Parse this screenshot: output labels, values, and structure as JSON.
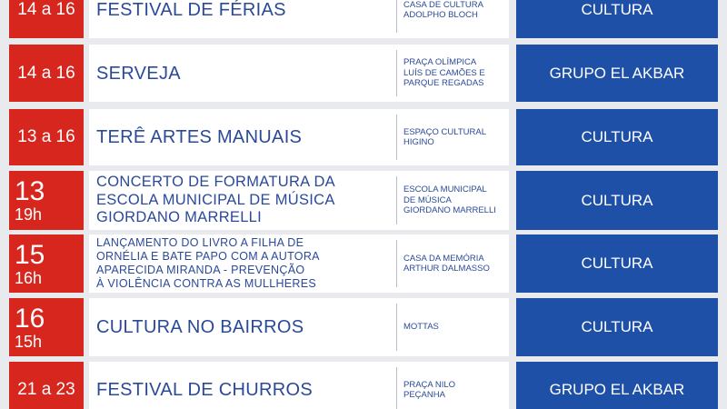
{
  "rows": [
    {
      "date": "14 a 16",
      "event": [
        "FESTIVAL DE FÉRIAS"
      ],
      "location": [
        "CASA DE CULTURA",
        "ADOLPHO BLOCH"
      ],
      "organizer": "CULTURA"
    },
    {
      "date": "14 a 16",
      "event": [
        "SERVEJA"
      ],
      "location": [
        "PRAÇA OLÍMPICA",
        "LUÍS DE CAMÕES E",
        "PARQUE REGADAS"
      ],
      "organizer": "GRUPO EL AKBAR"
    },
    {
      "date": "13 a 16",
      "event": [
        "TERÊ ARTES MANUAIS"
      ],
      "location": [
        "ESPAÇO CULTURAL",
        "HIGINO"
      ],
      "organizer": "CULTURA"
    },
    {
      "date": "13",
      "time": "19h",
      "event": [
        "CONCERTO DE FORMATURA DA",
        "ESCOLA MUNICIPAL DE MÚSICA",
        "GIORDANO MARRELLI"
      ],
      "location": [
        "ESCOLA MUNICIPAL",
        "DE MÚSICA",
        "GIORDANO MARRELLI"
      ],
      "organizer": "CULTURA"
    },
    {
      "date": "15",
      "time": "16h",
      "event": [
        "LANÇAMENTO DO LIVRO A FILHA DE",
        "ORNÉLIA E BATE PAPO COM A AUTORA",
        "APARECIDA MIRANDA - PREVENÇÃO",
        "À VIOLÊNCIA CONTRA AS MULLHERES"
      ],
      "location": [
        "CASA DA MEMÓRIA",
        "ARTHUR DALMASSO"
      ],
      "organizer": "CULTURA"
    },
    {
      "date": "16",
      "time": "15h",
      "event": [
        "CULTURA NO BAIRROS"
      ],
      "location": [
        "MOTTAS"
      ],
      "organizer": "CULTURA"
    },
    {
      "date": "21 a 23",
      "event": [
        "FESTIVAL DE CHURROS"
      ],
      "location": [
        "PRAÇA NILO",
        "PEÇANHA"
      ],
      "organizer": "GRUPO EL AKBAR"
    }
  ]
}
